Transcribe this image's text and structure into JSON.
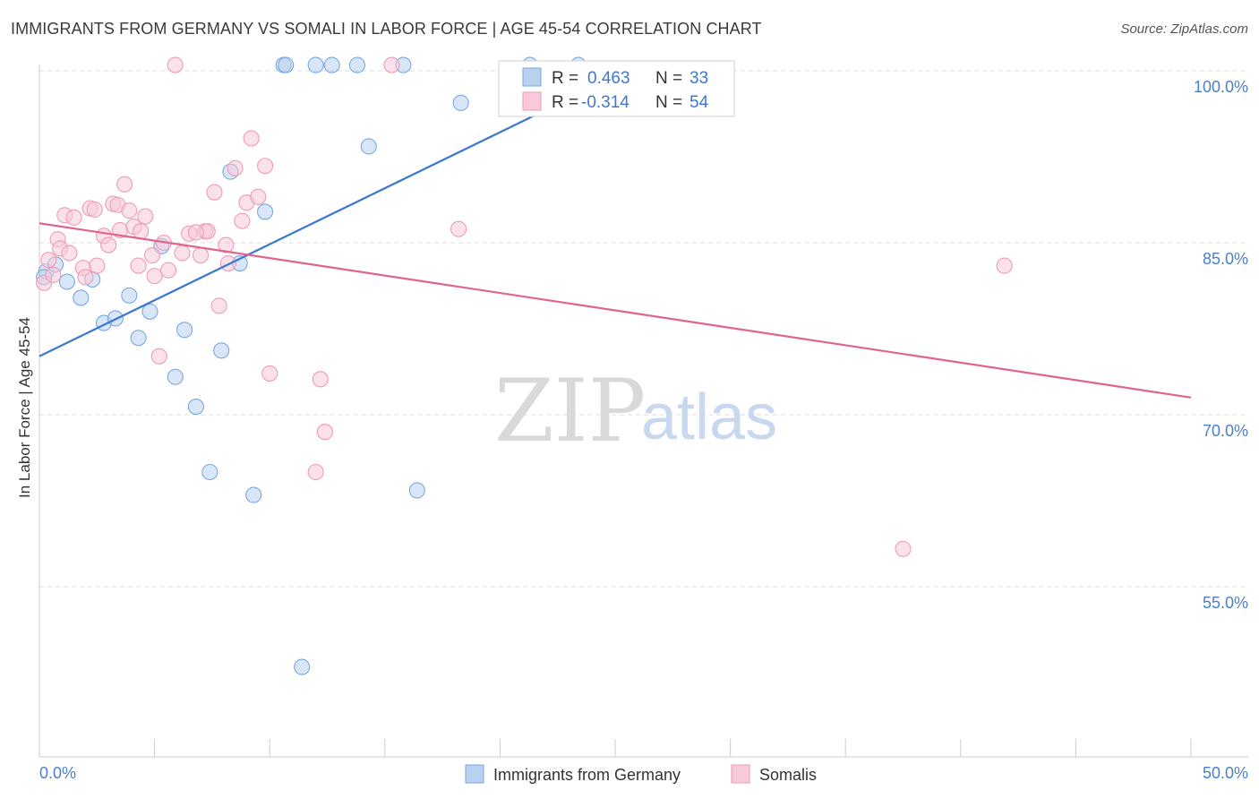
{
  "title": "IMMIGRANTS FROM GERMANY VS SOMALI IN LABOR FORCE | AGE 45-54 CORRELATION CHART",
  "source": "Source: ZipAtlas.com",
  "watermark": {
    "zip": "ZIP",
    "atlas": "atlas"
  },
  "chart_data": {
    "type": "scatter",
    "title": "IMMIGRANTS FROM GERMANY VS SOMALI IN LABOR FORCE | AGE 45-54 CORRELATION CHART",
    "xlabel": "",
    "ylabel": "In Labor Force | Age 45-54",
    "xlim": [
      0,
      50
    ],
    "ylim": [
      41,
      102
    ],
    "x_tick_labels": [
      "0.0%",
      "50.0%"
    ],
    "y_ticks": [
      100,
      85,
      70,
      55
    ],
    "y_tick_labels": [
      "100.0%",
      "85.0%",
      "70.0%",
      "55.0%"
    ],
    "grid": true,
    "series": [
      {
        "name": "Immigrants from Germany",
        "color": "#7aa7e0",
        "fill": "#b9d1f1",
        "r": "0.463",
        "n": "33",
        "trend": {
          "x": [
            0,
            26
          ],
          "y": [
            75.1,
            100.5
          ],
          "color": "#3b78d0"
        },
        "points": [
          {
            "x": 0.3,
            "y": 82.5
          },
          {
            "x": 0.7,
            "y": 83.1
          },
          {
            "x": 1.2,
            "y": 81.6
          },
          {
            "x": 1.8,
            "y": 80.2
          },
          {
            "x": 2.3,
            "y": 81.8
          },
          {
            "x": 2.8,
            "y": 78.0
          },
          {
            "x": 3.3,
            "y": 78.4
          },
          {
            "x": 3.9,
            "y": 80.4
          },
          {
            "x": 4.3,
            "y": 76.7
          },
          {
            "x": 4.8,
            "y": 79.0
          },
          {
            "x": 5.3,
            "y": 84.7
          },
          {
            "x": 5.9,
            "y": 73.3
          },
          {
            "x": 6.3,
            "y": 77.4
          },
          {
            "x": 6.8,
            "y": 70.7
          },
          {
            "x": 7.4,
            "y": 65.0
          },
          {
            "x": 7.9,
            "y": 75.6
          },
          {
            "x": 8.3,
            "y": 91.2
          },
          {
            "x": 8.7,
            "y": 83.2
          },
          {
            "x": 9.3,
            "y": 63.0
          },
          {
            "x": 9.8,
            "y": 87.7
          },
          {
            "x": 10.6,
            "y": 100.5
          },
          {
            "x": 10.7,
            "y": 100.5
          },
          {
            "x": 11.4,
            "y": 48.0
          },
          {
            "x": 12.0,
            "y": 100.5
          },
          {
            "x": 12.7,
            "y": 100.5
          },
          {
            "x": 13.8,
            "y": 100.5
          },
          {
            "x": 14.3,
            "y": 93.4
          },
          {
            "x": 15.8,
            "y": 100.5
          },
          {
            "x": 16.4,
            "y": 63.4
          },
          {
            "x": 18.3,
            "y": 97.2
          },
          {
            "x": 21.3,
            "y": 100.5
          },
          {
            "x": 23.4,
            "y": 100.5
          },
          {
            "x": 0.2,
            "y": 82.0
          }
        ]
      },
      {
        "name": "Somalis",
        "color": "#ef9ab6",
        "fill": "#f8c9d8",
        "r": "-0.314",
        "n": "54",
        "trend": {
          "x": [
            0,
            50
          ],
          "y": [
            86.7,
            71.5
          ],
          "color": "#e0648f"
        },
        "points": [
          {
            "x": 0.2,
            "y": 81.5
          },
          {
            "x": 0.4,
            "y": 83.5
          },
          {
            "x": 0.6,
            "y": 82.2
          },
          {
            "x": 0.8,
            "y": 85.3
          },
          {
            "x": 0.9,
            "y": 84.5
          },
          {
            "x": 1.1,
            "y": 87.4
          },
          {
            "x": 1.3,
            "y": 84.1
          },
          {
            "x": 1.5,
            "y": 87.2
          },
          {
            "x": 1.9,
            "y": 82.8
          },
          {
            "x": 2.0,
            "y": 82.0
          },
          {
            "x": 2.2,
            "y": 88.0
          },
          {
            "x": 2.4,
            "y": 87.9
          },
          {
            "x": 2.5,
            "y": 83.0
          },
          {
            "x": 2.8,
            "y": 85.6
          },
          {
            "x": 3.0,
            "y": 84.8
          },
          {
            "x": 3.2,
            "y": 88.4
          },
          {
            "x": 3.4,
            "y": 88.3
          },
          {
            "x": 3.5,
            "y": 86.1
          },
          {
            "x": 3.7,
            "y": 90.1
          },
          {
            "x": 3.9,
            "y": 87.8
          },
          {
            "x": 4.1,
            "y": 86.4
          },
          {
            "x": 4.3,
            "y": 83.0
          },
          {
            "x": 4.4,
            "y": 86.0
          },
          {
            "x": 4.6,
            "y": 87.3
          },
          {
            "x": 4.9,
            "y": 83.9
          },
          {
            "x": 5.0,
            "y": 82.1
          },
          {
            "x": 5.2,
            "y": 75.1
          },
          {
            "x": 5.4,
            "y": 85.0
          },
          {
            "x": 5.6,
            "y": 82.6
          },
          {
            "x": 5.9,
            "y": 100.5
          },
          {
            "x": 6.2,
            "y": 84.1
          },
          {
            "x": 6.5,
            "y": 85.8
          },
          {
            "x": 7.0,
            "y": 83.9
          },
          {
            "x": 7.2,
            "y": 86.0
          },
          {
            "x": 7.3,
            "y": 86.0
          },
          {
            "x": 7.6,
            "y": 89.4
          },
          {
            "x": 7.8,
            "y": 79.5
          },
          {
            "x": 8.1,
            "y": 84.8
          },
          {
            "x": 8.2,
            "y": 83.2
          },
          {
            "x": 8.5,
            "y": 91.5
          },
          {
            "x": 8.8,
            "y": 86.9
          },
          {
            "x": 9.0,
            "y": 88.5
          },
          {
            "x": 9.2,
            "y": 94.1
          },
          {
            "x": 9.5,
            "y": 89.0
          },
          {
            "x": 9.8,
            "y": 91.7
          },
          {
            "x": 10.0,
            "y": 73.6
          },
          {
            "x": 12.0,
            "y": 65.0
          },
          {
            "x": 12.2,
            "y": 73.1
          },
          {
            "x": 12.4,
            "y": 68.5
          },
          {
            "x": 15.3,
            "y": 100.5
          },
          {
            "x": 18.2,
            "y": 86.2
          },
          {
            "x": 41.9,
            "y": 83.0
          },
          {
            "x": 37.5,
            "y": 58.3
          },
          {
            "x": 6.8,
            "y": 85.9
          }
        ]
      }
    ]
  },
  "stats": {
    "r_label": "R =",
    "n_label": "N ="
  }
}
